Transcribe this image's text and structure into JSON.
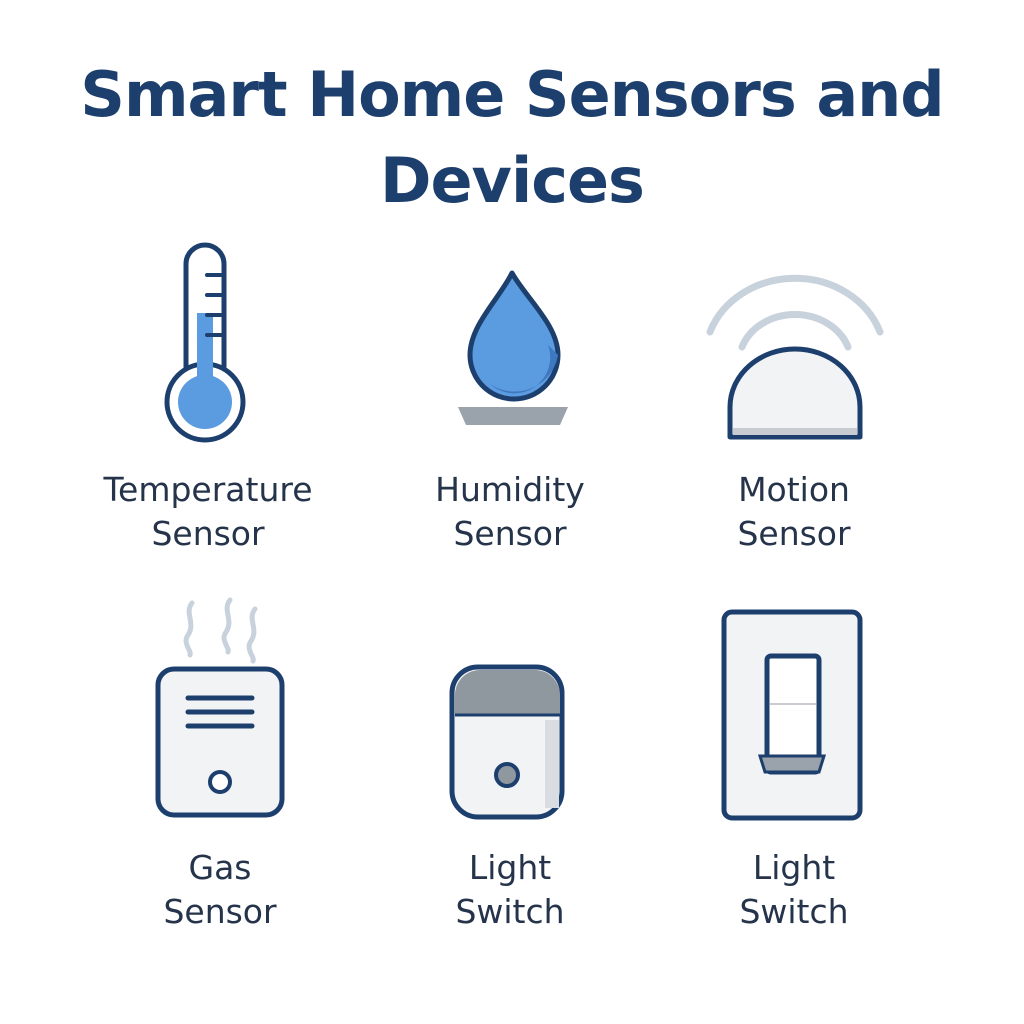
{
  "title": {
    "line1": "Smart Home Sensors and",
    "line2": "Devices"
  },
  "colors": {
    "title": "#1d3f6e",
    "outline": "#1d3f6e",
    "accent_blue": "#5b9be0",
    "light_fill": "#f2f3f5",
    "gray": "#8f979f",
    "wave": "#c8d2dc",
    "label_text": "#25344a"
  },
  "devices": [
    {
      "icon": "thermometer-icon",
      "label_line1": "Temperature",
      "label_line2": "Sensor"
    },
    {
      "icon": "water-drop-icon",
      "label_line1": "Humidity",
      "label_line2": "Sensor"
    },
    {
      "icon": "motion-sensor-icon",
      "label_line1": "Motion",
      "label_line2": "Sensor"
    },
    {
      "icon": "gas-sensor-icon",
      "label_line1": "Gas",
      "label_line2": "Sensor"
    },
    {
      "icon": "smart-plug-icon",
      "label_line1": "Light",
      "label_line2": "Switch"
    },
    {
      "icon": "light-switch-icon",
      "label_line1": "Light",
      "label_line2": "Switch"
    }
  ]
}
